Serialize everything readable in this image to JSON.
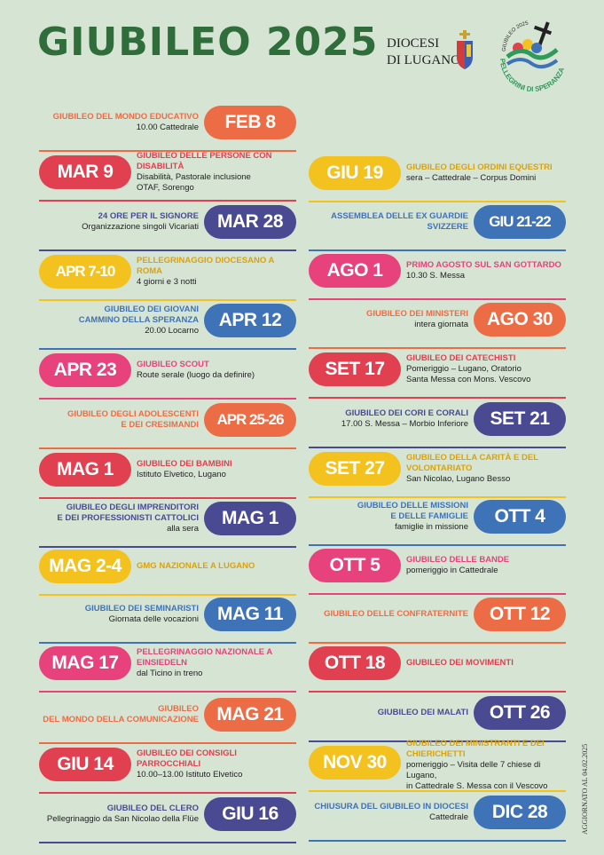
{
  "header": {
    "title": "GIUBILEO 2025",
    "diocesi_line1": "DIOCESI",
    "diocesi_line2": "DI LUGANO",
    "logo_top": "GIUBILEO 2025",
    "logo_bottom": "PELLEGRINI DI SPERANZA"
  },
  "footer": {
    "updated": "AGGIORNATO AL 04.02.2025"
  },
  "colors": {
    "orange": "#ec6d45",
    "red": "#e0404f",
    "yellow": "#f4c21f",
    "navy": "#4a4a92",
    "blue": "#3f73b8",
    "pink": "#e7427c",
    "green": "#2f6e3a"
  },
  "left": [
    {
      "date": "FEB 8",
      "color": "orange",
      "title": "GIUBILEO DEL MONDO EDUCATIVO",
      "sub": "10.00 Cattedrale"
    },
    {
      "date": "MAR 9",
      "color": "red",
      "title": "GIUBILEO DELLE PERSONE CON DISABILITÀ",
      "sub": "Disabilità, Pastorale inclusione\nOTAF, Sorengo"
    },
    {
      "date": "MAR 28",
      "color": "navy",
      "title": "24 ORE PER IL SIGNORE",
      "sub": "Organizzazione singoli Vicariati"
    },
    {
      "date": "APR 7-10",
      "color": "yellow",
      "title": "PELLEGRINAGGIO DIOCESANO A ROMA",
      "sub": "4 giorni e 3 notti"
    },
    {
      "date": "APR 12",
      "color": "blue",
      "title": "GIUBILEO DEI GIOVANI\nCammino della Speranza",
      "sub": "20.00 Locarno"
    },
    {
      "date": "APR 23",
      "color": "pink",
      "title": "GIUBILEO SCOUT",
      "sub": "Route serale (luogo da definire)"
    },
    {
      "date": "APR 25-26",
      "color": "orange",
      "title": "GIUBILEO DEGLI ADOLESCENTI\nE DEI CRESIMANDI",
      "sub": ""
    },
    {
      "date": "MAG 1",
      "color": "red",
      "title": "GIUBILEO DEI BAMBINI",
      "sub": "Istituto Elvetico, Lugano"
    },
    {
      "date": "MAG 1",
      "color": "navy",
      "title": "GIUBILEO DEGLI IMPRENDITORI\nE DEI PROFESSIONISTI CATTOLICI",
      "sub": "alla sera"
    },
    {
      "date": "MAG 2-4",
      "color": "yellow",
      "title": "GMG NAZIONALE A LUGANO",
      "sub": ""
    },
    {
      "date": "MAG 11",
      "color": "blue",
      "title": "GIUBILEO DEI SEMINARISTI",
      "sub": "Giornata delle vocazioni"
    },
    {
      "date": "MAG 17",
      "color": "pink",
      "title": "PELLEGRINAGGIO NAZIONALE A EINSIEDELN",
      "sub": "dal Ticino in treno"
    },
    {
      "date": "MAG 21",
      "color": "orange",
      "title": "GIUBILEO\nDEL MONDO DELLA COMUNICAZIONE",
      "sub": ""
    },
    {
      "date": "GIU 14",
      "color": "red",
      "title": "GIUBILEO DEI CONSIGLI PARROCCHIALI",
      "sub": "10.00–13.00 Istituto Elvetico"
    },
    {
      "date": "GIU 16",
      "color": "navy",
      "title": "GIUBILEO DEL CLERO",
      "sub": "Pellegrinaggio da San Nicolao della Flüe"
    }
  ],
  "right": [
    {
      "date": "GIU 19",
      "color": "yellow",
      "title": "GIUBILEO DEGLI ORDINI EQUESTRI",
      "sub": "sera – Cattedrale – Corpus Domini"
    },
    {
      "date": "GIU 21-22",
      "color": "blue",
      "title": "ASSEMBLEA DELLE EX GUARDIE SVIZZERE",
      "sub": ""
    },
    {
      "date": "AGO 1",
      "color": "pink",
      "title": "PRIMO AGOSTO SUL SAN GOTTARDO",
      "sub": "10.30 S. Messa"
    },
    {
      "date": "AGO 30",
      "color": "orange",
      "title": "GIUBILEO DEI MINISTERI",
      "sub": "intera giornata"
    },
    {
      "date": "SET 17",
      "color": "red",
      "title": "GIUBILEO DEI CATECHISTI",
      "sub": "Pomeriggio – Lugano, Oratorio\nSanta Messa con Mons. Vescovo"
    },
    {
      "date": "SET 21",
      "color": "navy",
      "title": "GIUBILEO DEI CORI E CORALI",
      "sub": "17.00 S. Messa – Morbio Inferiore"
    },
    {
      "date": "SET 27",
      "color": "yellow",
      "title": "GIUBILEO DELLA CARITÀ E DEL VOLONTARIATO",
      "sub": "San Nicolao, Lugano Besso"
    },
    {
      "date": "OTT 4",
      "color": "blue",
      "title": "GIUBILEO DELLE MISSIONI\nE DELLE FAMIGLIE",
      "sub": "famiglie in missione"
    },
    {
      "date": "OTT 5",
      "color": "pink",
      "title": "GIUBILEO DELLE BANDE",
      "sub": "pomeriggio in Cattedrale"
    },
    {
      "date": "OTT 12",
      "color": "orange",
      "title": "GIUBILEO DELLE CONFRATERNITE",
      "sub": ""
    },
    {
      "date": "OTT 18",
      "color": "red",
      "title": "GIUBILEO DEI MOVIMENTI",
      "sub": ""
    },
    {
      "date": "OTT 26",
      "color": "navy",
      "title": "GIUBILEO DEI MALATI",
      "sub": ""
    },
    {
      "date": "NOV 30",
      "color": "yellow",
      "title": "GIUBILEO DEI MINISTRANTI E DEI CHIERICHETTI",
      "sub": "pomeriggio – Visita delle 7 chiese di Lugano,\nin Cattedrale S. Messa con il Vescovo"
    },
    {
      "date": "DIC 28",
      "color": "blue",
      "title": "CHIUSURA DEL GIUBILEO IN DIOCESI",
      "sub": "Cattedrale"
    }
  ]
}
